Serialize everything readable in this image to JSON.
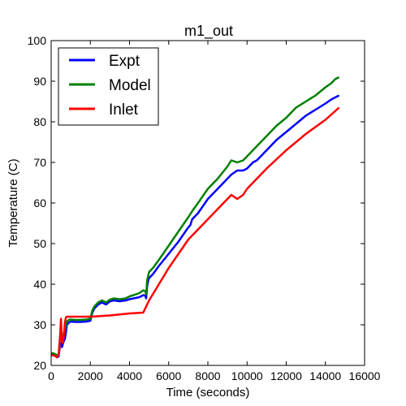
{
  "chart_data": {
    "type": "line",
    "title": "m1_out",
    "xlabel": "Time (seconds)",
    "ylabel": "Temperature (C)",
    "xlim": [
      0,
      16000
    ],
    "ylim": [
      20,
      100
    ],
    "xticks": [
      0,
      2000,
      4000,
      6000,
      8000,
      10000,
      12000,
      14000,
      16000
    ],
    "yticks": [
      20,
      30,
      40,
      50,
      60,
      70,
      80,
      90,
      100
    ],
    "grid": false,
    "legend_position": "top-left",
    "series": [
      {
        "name": "Expt",
        "color": "#0000ff",
        "x": [
          0,
          50,
          100,
          200,
          300,
          380,
          450,
          500,
          550,
          600,
          650,
          700,
          750,
          800,
          900,
          1000,
          1200,
          1500,
          1800,
          2000,
          2100,
          2200,
          2400,
          2600,
          2800,
          3000,
          3200,
          3500,
          3800,
          4000,
          4200,
          4500,
          4700,
          4800,
          4850,
          4900,
          4950,
          5000,
          5200,
          5500,
          6000,
          6500,
          7000,
          7100,
          7200,
          7500,
          8000,
          8500,
          9000,
          9200,
          9500,
          9800,
          10000,
          10300,
          10500,
          11000,
          11500,
          12000,
          12500,
          13000,
          13500,
          14000,
          14300,
          14500,
          14700
        ],
        "y": [
          22.5,
          22.5,
          22.6,
          22.5,
          22.0,
          22.2,
          25.0,
          25.5,
          24.5,
          25.3,
          26.0,
          26.5,
          28.0,
          30.0,
          30.5,
          30.8,
          30.7,
          30.7,
          30.8,
          31.0,
          33.0,
          34.0,
          35.0,
          35.5,
          35.0,
          35.8,
          36.0,
          35.8,
          36.0,
          36.3,
          36.5,
          36.8,
          37.3,
          37.2,
          36.5,
          39.5,
          40.8,
          41.5,
          42.5,
          44.5,
          47.5,
          50.5,
          54.0,
          54.5,
          56.0,
          57.5,
          61.0,
          63.5,
          66.0,
          67.0,
          68.0,
          68.0,
          68.5,
          70.0,
          70.5,
          73.0,
          75.5,
          77.5,
          79.5,
          81.5,
          83.0,
          84.5,
          85.5,
          86.0,
          86.5
        ]
      },
      {
        "name": "Model",
        "color": "#008000",
        "x": [
          0,
          50,
          100,
          200,
          300,
          380,
          450,
          500,
          550,
          600,
          650,
          700,
          750,
          800,
          900,
          1000,
          1200,
          1500,
          1800,
          2000,
          2100,
          2200,
          2400,
          2600,
          2800,
          3000,
          3200,
          3500,
          3800,
          4000,
          4200,
          4500,
          4700,
          4800,
          4850,
          4900,
          4950,
          5000,
          5200,
          5500,
          6000,
          6500,
          7000,
          7200,
          7500,
          8000,
          8500,
          9000,
          9200,
          9500,
          9800,
          10000,
          10300,
          10500,
          11000,
          11500,
          12000,
          12500,
          13000,
          13500,
          14000,
          14300,
          14500,
          14700
        ],
        "y": [
          23.0,
          23.0,
          23.0,
          22.8,
          22.5,
          22.8,
          27.0,
          27.5,
          26.0,
          27.0,
          28.0,
          28.5,
          30.0,
          30.8,
          31.2,
          31.3,
          31.2,
          31.2,
          31.3,
          31.5,
          33.5,
          34.5,
          35.5,
          36.0,
          35.5,
          36.2,
          36.5,
          36.3,
          36.5,
          37.0,
          37.3,
          37.8,
          38.5,
          38.3,
          37.5,
          41.0,
          42.0,
          43.0,
          44.0,
          46.0,
          49.5,
          53.0,
          56.5,
          58.0,
          60.0,
          63.5,
          66.0,
          69.0,
          70.5,
          70.0,
          70.5,
          71.5,
          73.0,
          74.0,
          76.5,
          79.0,
          81.0,
          83.5,
          85.0,
          86.5,
          88.5,
          89.5,
          90.5,
          91.0
        ]
      },
      {
        "name": "Inlet",
        "color": "#ff0000",
        "x": [
          0,
          50,
          100,
          200,
          300,
          400,
          450,
          500,
          550,
          600,
          650,
          700,
          750,
          800,
          1000,
          2000,
          3000,
          4000,
          4700,
          5000,
          6000,
          7000,
          8000,
          9000,
          9200,
          9500,
          9800,
          10000,
          11000,
          12000,
          13000,
          14000,
          14700
        ],
        "y": [
          22.5,
          22.5,
          22.5,
          22.3,
          22.0,
          23.0,
          27.0,
          31.5,
          26.0,
          25.5,
          27.5,
          30.5,
          31.8,
          32.0,
          32.0,
          32.0,
          32.3,
          32.8,
          33.0,
          36.0,
          44.0,
          51.0,
          56.0,
          61.0,
          62.0,
          61.0,
          62.0,
          63.5,
          68.5,
          73.0,
          77.0,
          80.5,
          83.5
        ]
      }
    ]
  }
}
